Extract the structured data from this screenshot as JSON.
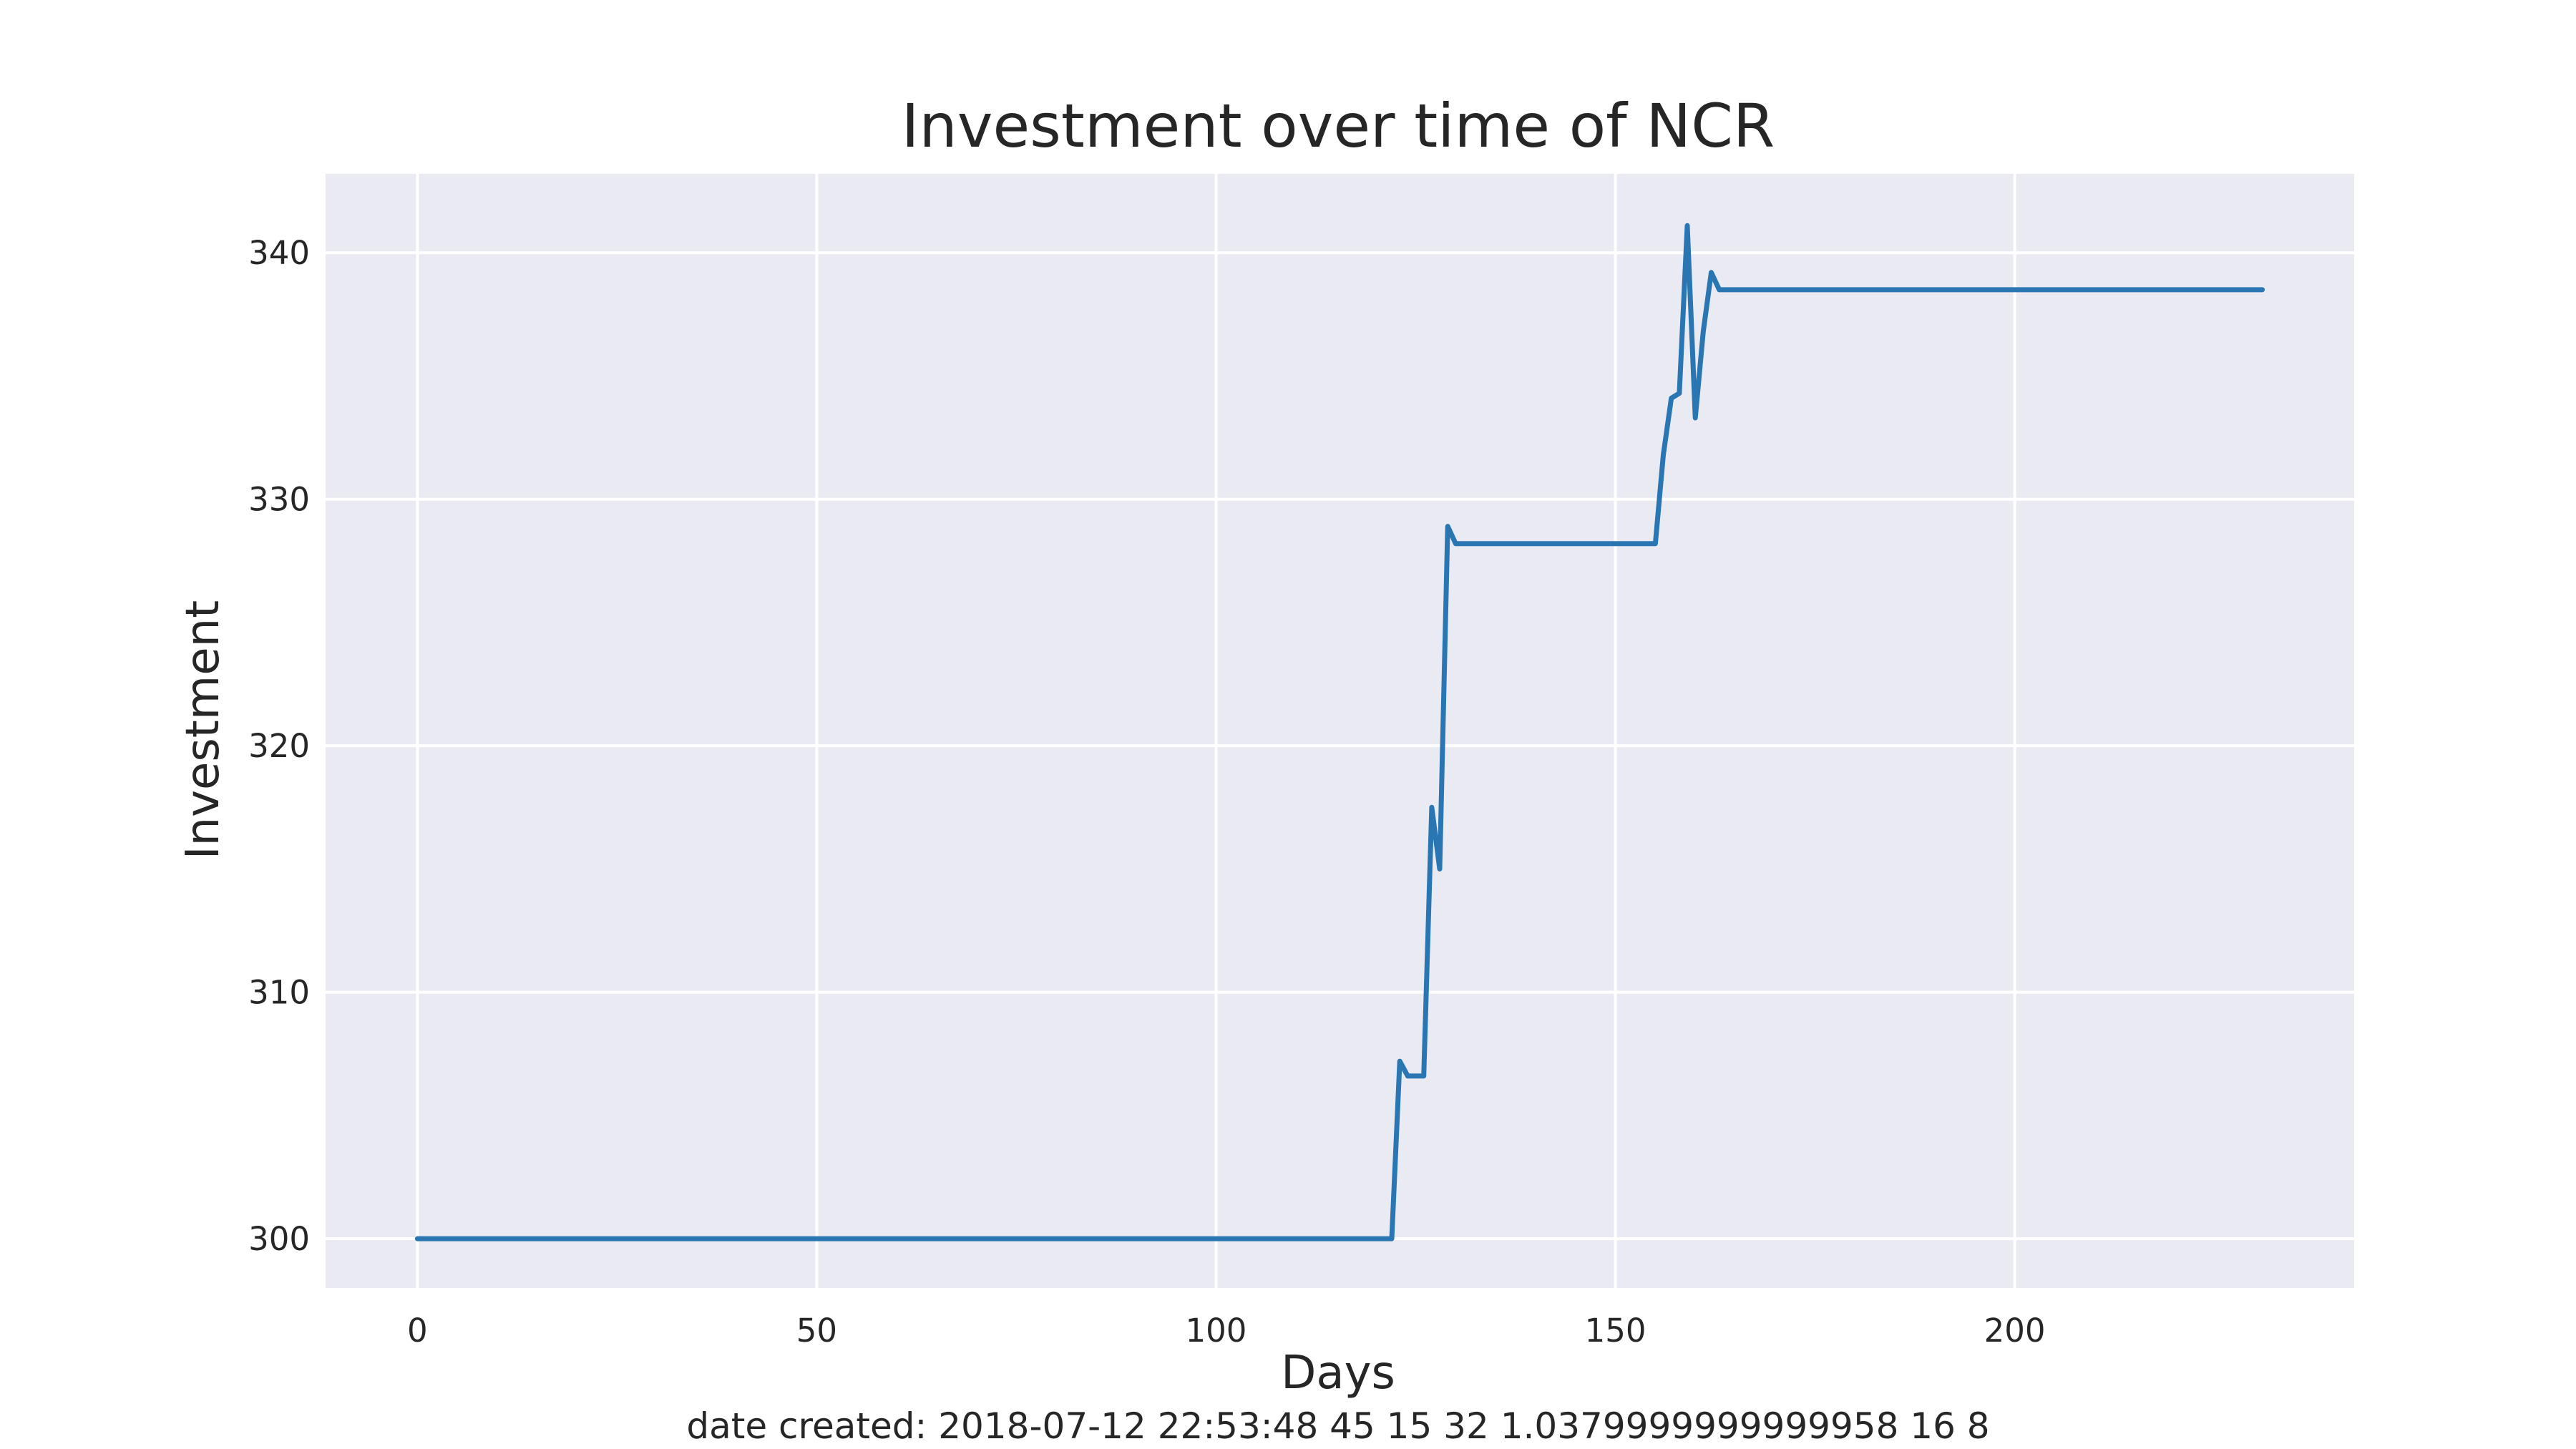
{
  "chart_data": {
    "type": "line",
    "title": "Investment over time of NCR",
    "xlabel": "Days",
    "ylabel": "Investment",
    "xlim": [
      -11.5,
      242.5
    ],
    "ylim": [
      298,
      343.2
    ],
    "x_ticks": [
      0,
      50,
      100,
      150,
      200
    ],
    "y_ticks": [
      300,
      310,
      320,
      330,
      340
    ],
    "grid": true,
    "legend": "none",
    "series": [
      {
        "color": "#2a76b3",
        "points": [
          [
            0,
            300.0
          ],
          [
            122,
            300.0
          ],
          [
            123,
            307.2
          ],
          [
            124,
            306.6
          ],
          [
            126,
            306.6
          ],
          [
            127,
            317.5
          ],
          [
            128,
            315.0
          ],
          [
            129,
            328.9
          ],
          [
            130,
            328.2
          ],
          [
            155,
            328.2
          ],
          [
            156,
            331.8
          ],
          [
            157,
            334.1
          ],
          [
            158,
            334.3
          ],
          [
            159,
            341.1
          ],
          [
            160,
            333.3
          ],
          [
            161,
            336.8
          ],
          [
            162,
            339.2
          ],
          [
            163,
            338.5
          ],
          [
            231,
            338.5
          ]
        ]
      }
    ],
    "colors": {
      "plot_background": "#eaeaf2",
      "grid": "#ffffff",
      "line": "#2a76b3"
    }
  },
  "footer": {
    "text": "date created: 2018-07-12 22:53:48 45 15 32 1.0379999999999958 16 8"
  }
}
